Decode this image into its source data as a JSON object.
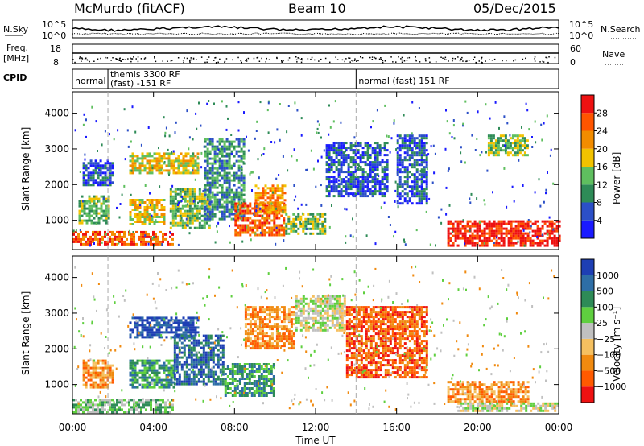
{
  "header": {
    "station": "McMurdo (fitACF)",
    "beam": "Beam 10",
    "date": "05/Dec/2015"
  },
  "noise_panel": {
    "left_label": "N.Sky",
    "right_label": "N.Search",
    "left_ticks": [
      "10^5",
      "10^0"
    ],
    "right_ticks": [
      "10^5",
      "10^0"
    ]
  },
  "freq_panel": {
    "left_label_1": "Freq.",
    "left_label_2": "[MHz]",
    "right_label": "Nave",
    "left_ticks": [
      "18",
      "8"
    ],
    "right_ticks": [
      "60",
      "0"
    ]
  },
  "cpid_panel": {
    "label": "CPID",
    "segments": [
      {
        "line1": "normal",
        "line2": "",
        "start": 0.0
      },
      {
        "line1": "themis 3300 RF",
        "line2": "(fast) -151 RF",
        "start": 1.75
      },
      {
        "line1": "normal (fast) 151 RF",
        "line2": "",
        "start": 14.0
      }
    ]
  },
  "time_axis": {
    "label": "Time UT",
    "ticks": [
      "00:00",
      "04:00",
      "08:00",
      "12:00",
      "16:00",
      "20:00",
      "00:00"
    ],
    "tick_hours": [
      0,
      4,
      8,
      12,
      16,
      20,
      24
    ]
  },
  "range_axis": {
    "label": "Slant Range [km]",
    "ticks": [
      "1000",
      "2000",
      "3000",
      "4000"
    ],
    "tick_values": [
      1000,
      2000,
      3000,
      4000
    ],
    "min": 180,
    "max": 4600
  },
  "power_panel": {
    "colorbar_label": "Power [dB]",
    "colorbar_ticks": [
      "4",
      "8",
      "12",
      "16",
      "20",
      "24",
      "28"
    ],
    "colors": [
      "#1a1aff",
      "#2b4fc7",
      "#2e8b57",
      "#5fbf5f",
      "#f2c200",
      "#f28c00",
      "#ff5500",
      "#ee1111"
    ]
  },
  "velocity_panel": {
    "colorbar_label": "Velocity [m s⁻¹]",
    "colorbar_ticks": [
      "1000",
      "500",
      "100",
      "25",
      "−25",
      "−100",
      "−500",
      "−1000"
    ],
    "colors": [
      "#1e3fb4",
      "#2e6ea6",
      "#2e8b57",
      "#5fcf3f",
      "#c0c0c0",
      "#f5c060",
      "#f08a10",
      "#ff5a00",
      "#ee1111"
    ]
  },
  "chart_data": {
    "type": "heatmap",
    "x_range_hours": [
      0,
      24
    ],
    "y_range_km": [
      180,
      4600
    ],
    "dashed_markers_hours": [
      1.75,
      14.0
    ],
    "power_blobs": [
      {
        "t0": 0.0,
        "t1": 5.0,
        "r0": 300,
        "r1": 700,
        "level": 6
      },
      {
        "t0": 0.3,
        "t1": 1.8,
        "r0": 900,
        "r1": 1700,
        "level": 3
      },
      {
        "t0": 0.5,
        "t1": 2.0,
        "r0": 2000,
        "r1": 2700,
        "level": 1
      },
      {
        "t0": 2.8,
        "t1": 6.2,
        "r0": 2300,
        "r1": 2900,
        "level": 4
      },
      {
        "t0": 2.8,
        "t1": 4.5,
        "r0": 900,
        "r1": 1600,
        "level": 4
      },
      {
        "t0": 4.8,
        "t1": 6.8,
        "r0": 800,
        "r1": 1900,
        "level": 3
      },
      {
        "t0": 6.5,
        "t1": 8.5,
        "r0": 1000,
        "r1": 3300,
        "level": 2
      },
      {
        "t0": 8.0,
        "t1": 10.5,
        "r0": 600,
        "r1": 1500,
        "level": 6
      },
      {
        "t0": 9.0,
        "t1": 10.5,
        "r0": 1200,
        "r1": 2000,
        "level": 5
      },
      {
        "t0": 10.5,
        "t1": 12.5,
        "r0": 600,
        "r1": 1200,
        "level": 3
      },
      {
        "t0": 12.5,
        "t1": 15.5,
        "r0": 1700,
        "r1": 3200,
        "level": 1
      },
      {
        "t0": 16.0,
        "t1": 17.5,
        "r0": 1500,
        "r1": 3400,
        "level": 1
      },
      {
        "t0": 18.5,
        "t1": 24.0,
        "r0": 300,
        "r1": 1000,
        "level": 7
      },
      {
        "t0": 20.5,
        "t1": 22.5,
        "r0": 2800,
        "r1": 3400,
        "level": 3
      }
    ],
    "velocity_blobs": [
      {
        "t0": 0.0,
        "t1": 5.0,
        "r0": 250,
        "r1": 600,
        "level": 3
      },
      {
        "t0": 0.5,
        "t1": 2.0,
        "r0": 900,
        "r1": 1700,
        "level": 6
      },
      {
        "t0": 2.8,
        "t1": 6.2,
        "r0": 2300,
        "r1": 2900,
        "level": 0
      },
      {
        "t0": 2.8,
        "t1": 5.0,
        "r0": 900,
        "r1": 1700,
        "level": 2
      },
      {
        "t0": 5.0,
        "t1": 7.5,
        "r0": 1000,
        "r1": 2400,
        "level": 1
      },
      {
        "t0": 7.5,
        "t1": 10.0,
        "r0": 700,
        "r1": 1600,
        "level": 2
      },
      {
        "t0": 8.5,
        "t1": 11.0,
        "r0": 2000,
        "r1": 3200,
        "level": 6
      },
      {
        "t0": 11.0,
        "t1": 13.5,
        "r0": 2500,
        "r1": 3500,
        "level": 4
      },
      {
        "t0": 13.5,
        "t1": 17.5,
        "r0": 1200,
        "r1": 3200,
        "level": 7
      },
      {
        "t0": 18.5,
        "t1": 22.5,
        "r0": 500,
        "r1": 1100,
        "level": 6
      },
      {
        "t0": 19.0,
        "t1": 24.0,
        "r0": 250,
        "r1": 500,
        "level": 4
      }
    ]
  }
}
